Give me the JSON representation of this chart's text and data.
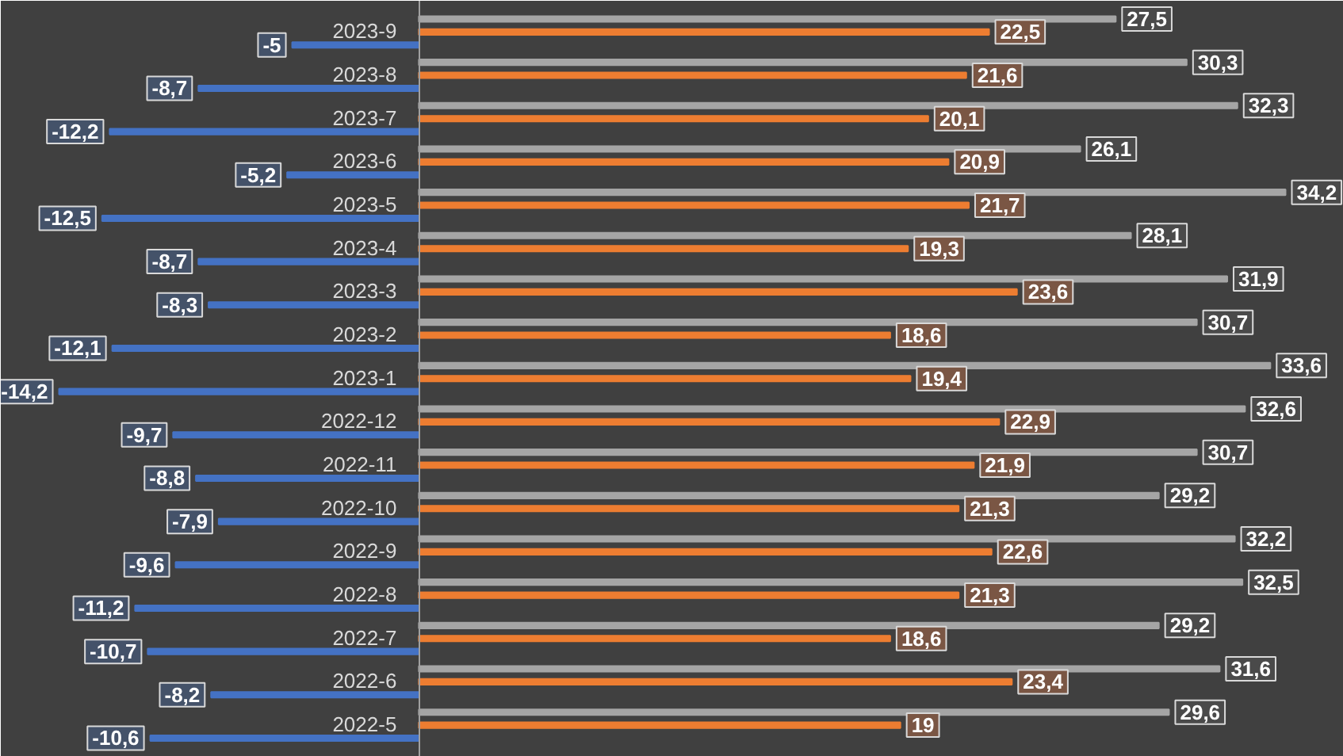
{
  "chart_data": {
    "type": "bar",
    "orientation": "horizontal",
    "tick_labels": "y",
    "xlim": [
      -16.5,
      36.5
    ],
    "categories": [
      "2023-9",
      "2023-8",
      "2023-7",
      "2023-6",
      "2023-5",
      "2023-4",
      "2023-3",
      "2023-2",
      "2023-1",
      "2022-12",
      "2022-11",
      "2022-10",
      "2022-9",
      "2022-8",
      "2022-7",
      "2022-6",
      "2022-5"
    ],
    "series": [
      {
        "color": "#a5a5a5",
        "values": [
          27.5,
          30.3,
          32.3,
          26.1,
          34.2,
          28.1,
          31.9,
          30.7,
          33.6,
          32.6,
          30.7,
          29.2,
          32.2,
          32.5,
          29.2,
          31.6,
          29.6
        ],
        "value_labels": [
          "27,5",
          "30,3",
          "32,3",
          "26,1",
          "34,2",
          "28,1",
          "31,9",
          "30,7",
          "33,6",
          "32,6",
          "30,7",
          "29,2",
          "32,2",
          "32,5",
          "29,2",
          "31,6",
          "29,6"
        ]
      },
      {
        "color": "#ed7d31",
        "values": [
          22.5,
          21.6,
          20.1,
          20.9,
          21.7,
          19.3,
          23.6,
          18.6,
          19.4,
          22.9,
          21.9,
          21.3,
          22.6,
          21.3,
          18.6,
          23.4,
          19
        ],
        "value_labels": [
          "22,5",
          "21,6",
          "20,1",
          "20,9",
          "21,7",
          "19,3",
          "23,6",
          "18,6",
          "19,4",
          "22,9",
          "21,9",
          "21,3",
          "22,6",
          "21,3",
          "18,6",
          "23,4",
          "19"
        ]
      },
      {
        "color": "#4472c4",
        "values": [
          -5,
          -8.7,
          -12.2,
          -5.2,
          -12.5,
          -8.7,
          -8.3,
          -12.1,
          -14.2,
          -9.7,
          -8.8,
          -7.9,
          -9.6,
          -11.2,
          -10.7,
          -8.2,
          -10.6
        ],
        "value_labels": [
          "-5",
          "-8,7",
          "-12,2",
          "-5,2",
          "-12,5",
          "-8,7",
          "-8,3",
          "-12,1",
          "-14,2",
          "-9,7",
          "-8,8",
          "-7,9",
          "-9,6",
          "-11,2",
          "-10,7",
          "-8,2",
          "-10,6"
        ]
      }
    ]
  }
}
